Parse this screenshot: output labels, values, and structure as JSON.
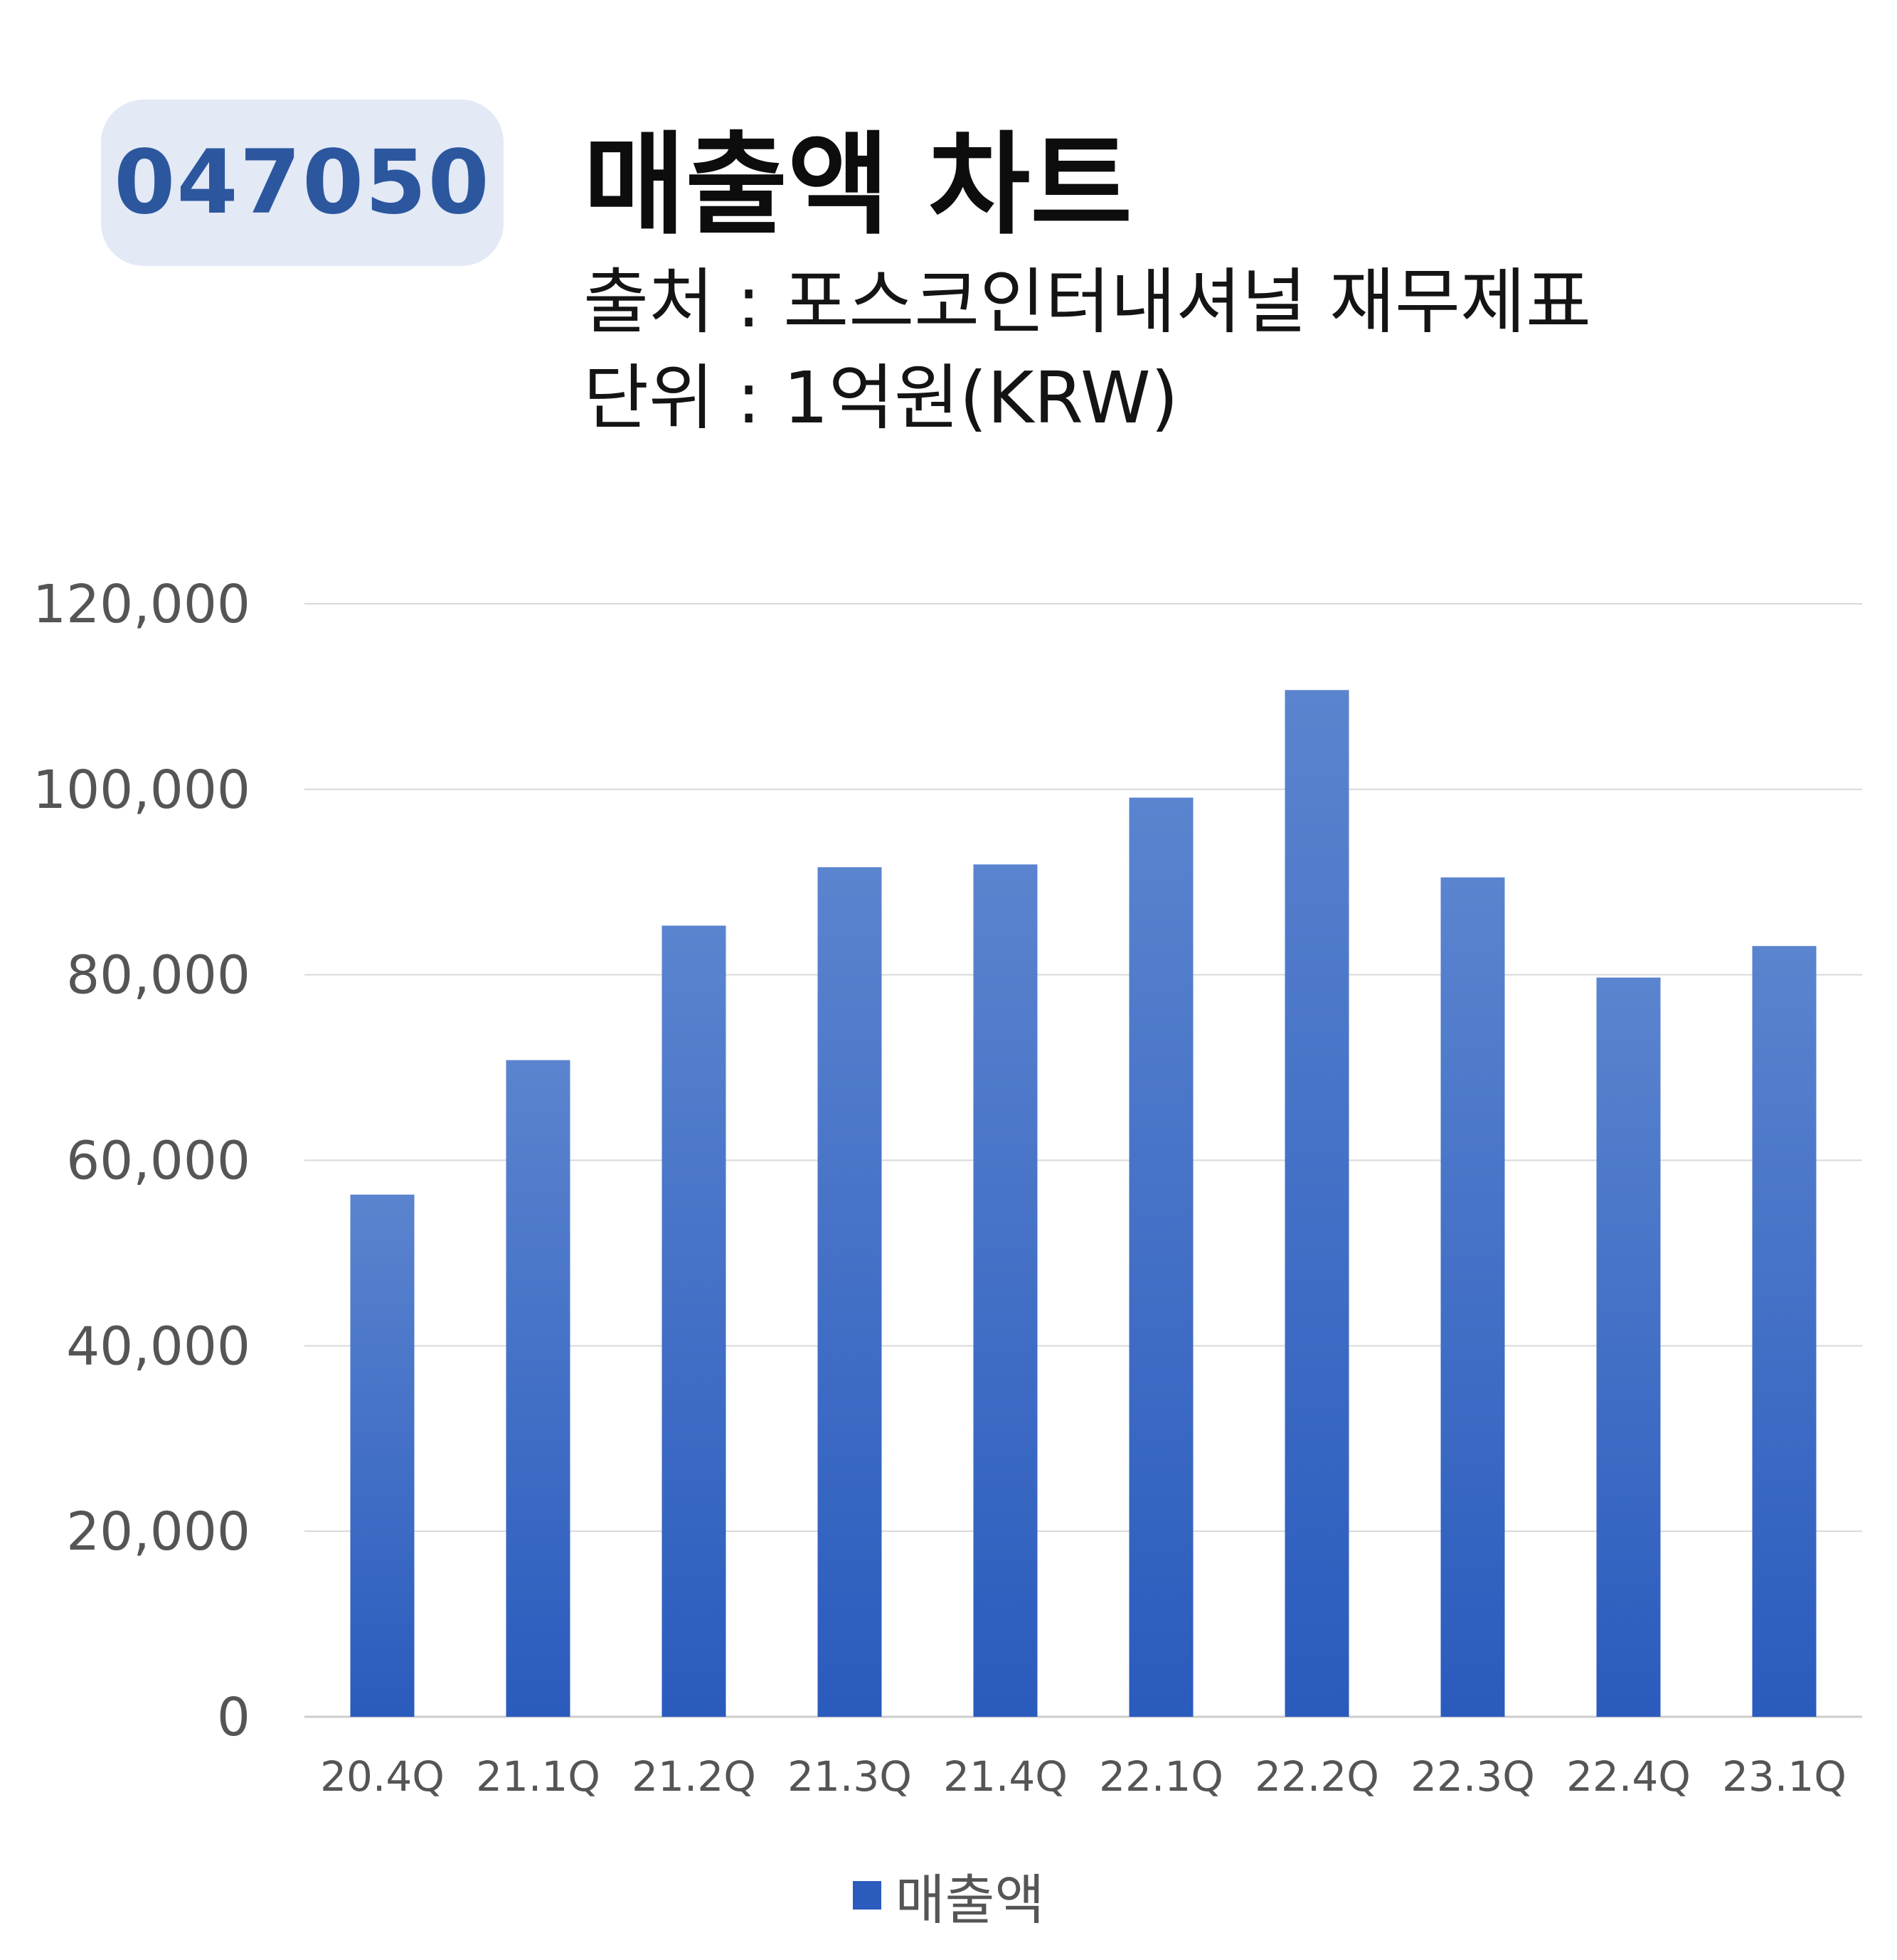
{
  "header": {
    "ticker": "047050",
    "title": "매출액 차트",
    "source": "출처 : 포스코인터내셔널 재무제표",
    "unit": "단위 : 1억원(KRW)"
  },
  "colors": {
    "badge_bg": "#e3e9f5",
    "badge_text": "#2c579f",
    "bar_top": "#5b84cf",
    "bar_bottom": "#2a5bbd",
    "grid": "#d9d9d9",
    "tick_text": "#555555"
  },
  "chart_data": {
    "type": "bar",
    "categories": [
      "20.4Q",
      "21.1Q",
      "21.2Q",
      "21.3Q",
      "21.4Q",
      "22.1Q",
      "22.2Q",
      "22.3Q",
      "22.4Q",
      "23.1Q"
    ],
    "series": [
      {
        "name": "매출액",
        "values": [
          56300,
          70800,
          85300,
          91600,
          91900,
          99100,
          110700,
          90500,
          79700,
          83100
        ]
      }
    ],
    "ylim": [
      0,
      120000
    ],
    "yticks": [
      "0",
      "20,000",
      "40,000",
      "60,000",
      "80,000",
      "100,000",
      "120,000"
    ],
    "grid": true,
    "legend": "bottom"
  }
}
